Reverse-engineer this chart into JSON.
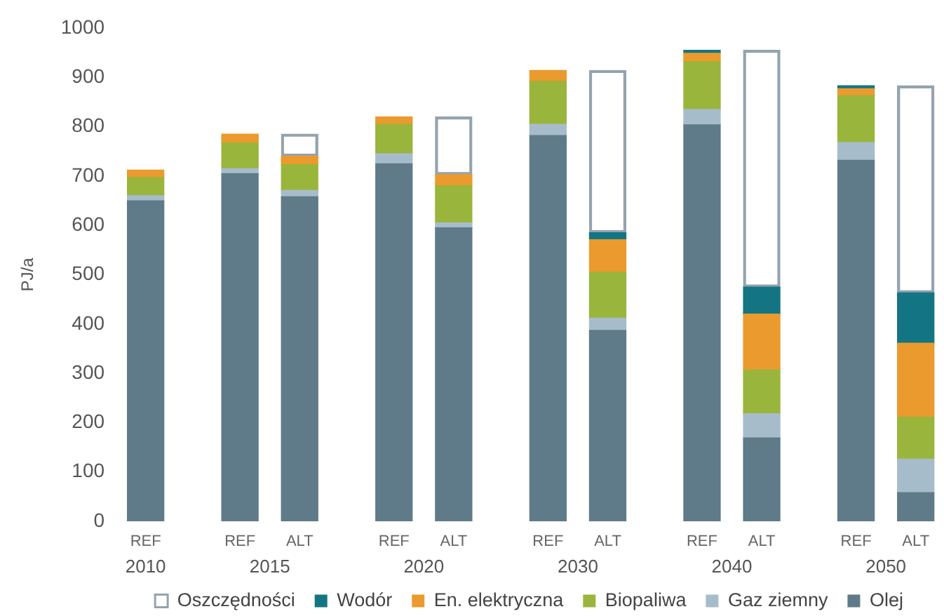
{
  "chart_data": {
    "type": "bar",
    "stacked": true,
    "ylabel": "PJ/a",
    "categories": [
      "REF",
      "REF",
      "ALT",
      "REF",
      "ALT",
      "REF",
      "ALT",
      "REF",
      "ALT",
      "REF",
      "ALT"
    ],
    "annotations": [
      "2010",
      "2015",
      "2020",
      "2030",
      "2040",
      "2050"
    ],
    "series": [
      {
        "name": "Olej",
        "color": "#5f7b89",
        "values": [
          650,
          705,
          658,
          725,
          595,
          782,
          387,
          804,
          169,
          732,
          58
        ]
      },
      {
        "name": "Gaz ziemny",
        "color": "#a7bccb",
        "values": [
          10,
          10,
          13,
          20,
          10,
          23,
          25,
          31,
          49,
          36,
          68
        ]
      },
      {
        "name": "Biopaliwa",
        "color": "#9ab53c",
        "values": [
          37,
          52,
          52,
          60,
          75,
          87,
          93,
          97,
          89,
          95,
          85
        ]
      },
      {
        "name": "En. elektryczna",
        "color": "#eb9a2e",
        "values": [
          15,
          18,
          17,
          15,
          23,
          22,
          66,
          17,
          113,
          14,
          150
        ]
      },
      {
        "name": "Wodór",
        "color": "#137584",
        "values": [
          null,
          null,
          null,
          null,
          null,
          null,
          14,
          6,
          55,
          6,
          102
        ]
      },
      {
        "name": "Oszczędności",
        "color": "#94a3ae",
        "values": [
          null,
          null,
          45,
          null,
          117,
          null,
          329,
          null,
          480,
          null,
          420
        ]
      }
    ],
    "ylim": [
      0,
      1000
    ],
    "yticks": [
      0,
      100,
      200,
      300,
      400,
      500,
      600,
      700,
      800,
      900,
      1000
    ],
    "legend": "bottom"
  }
}
